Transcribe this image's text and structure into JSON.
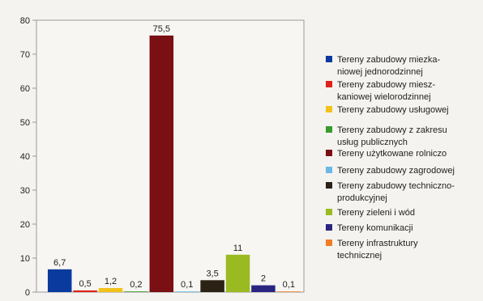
{
  "chart_data": {
    "type": "bar",
    "title": "",
    "xlabel": "",
    "ylabel": "",
    "ylim": [
      0,
      80
    ],
    "yticks": [
      "0",
      "10",
      "20",
      "30",
      "40",
      "50",
      "60",
      "70",
      "80"
    ],
    "grid": false,
    "legend_position": "right",
    "value_labels": [
      "6,7",
      "0,5",
      "1,2",
      "0,2",
      "75,5",
      "0,1",
      "3,5",
      "11",
      "2",
      "0,1"
    ],
    "values": [
      6.7,
      0.5,
      1.2,
      0.2,
      75.5,
      0.1,
      3.5,
      11,
      2,
      0.1
    ],
    "series": [
      {
        "name": [
          "Tereny zabudowy miezka-",
          "niowej jednorodzinnej"
        ],
        "value": 6.7,
        "color": "#0a3a9e"
      },
      {
        "name": [
          "Tereny zabudowy miesz-",
          "kaniowej wielorodzinnej"
        ],
        "value": 0.5,
        "color": "#e0201a"
      },
      {
        "name": [
          "Tereny zabudowy usługowej"
        ],
        "value": 1.2,
        "color": "#f2c21a"
      },
      {
        "name": [
          "Tereny zabudowy z zakresu",
          "usług publicznych"
        ],
        "value": 0.2,
        "color": "#3a9a2a"
      },
      {
        "name": [
          "Tereny użytkowane rolniczo"
        ],
        "value": 75.5,
        "color": "#7a0f14"
      },
      {
        "name": [
          "Tereny zabudowy zagrodowej"
        ],
        "value": 0.1,
        "color": "#6ab8e6"
      },
      {
        "name": [
          "Tereny zabudowy techniczno-",
          "produkcyjnej"
        ],
        "value": 3.5,
        "color": "#2b2115"
      },
      {
        "name": [
          "Tereny zieleni i wód"
        ],
        "value": 11,
        "color": "#9aba22"
      },
      {
        "name": [
          "Tereny komunikacji"
        ],
        "value": 2,
        "color": "#2a2680"
      },
      {
        "name": [
          "Tereny infrastruktury",
          "technicznej"
        ],
        "value": 0.1,
        "color": "#ef7d25"
      }
    ]
  }
}
